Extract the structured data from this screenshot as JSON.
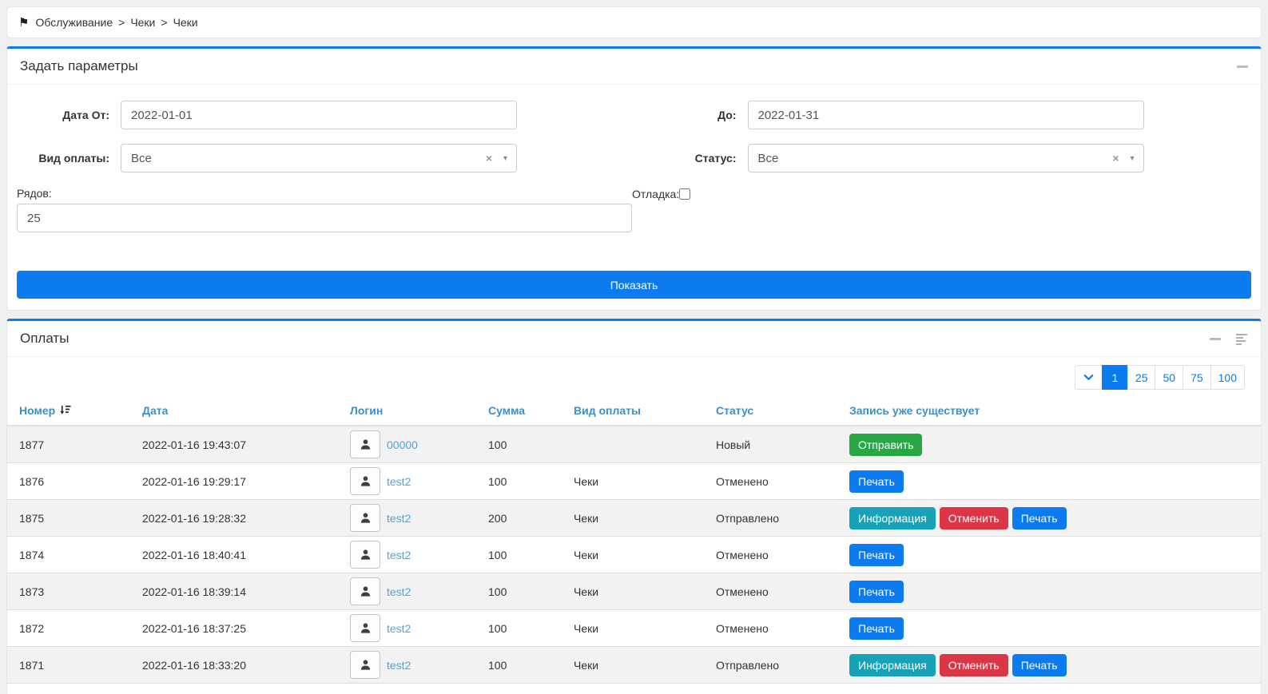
{
  "colors": {
    "accent_blue": "#0d7bf0",
    "table_header_blue": "#3d8fc9",
    "link_blue": "#55a1d6",
    "success_green": "#28a745",
    "info_teal": "#18a2b8",
    "danger_red": "#dc3545",
    "row_stripe_gray": "#f2f2f2"
  },
  "breadcrumb": {
    "icon": "flag-icon",
    "separator": ">",
    "items": [
      "Обслуживание",
      "Чеки",
      "Чеки"
    ]
  },
  "filters_panel": {
    "title": "Задать параметры",
    "date_from": {
      "label": "Дата От:",
      "value": "2022-01-01"
    },
    "date_to": {
      "label": "До:",
      "value": "2022-01-31"
    },
    "payment_type": {
      "label": "Вид оплаты:",
      "value": "Все",
      "clear": "×",
      "caret": "▾"
    },
    "status": {
      "label": "Статус:",
      "value": "Все",
      "clear": "×",
      "caret": "▾"
    },
    "rows": {
      "label": "Рядов:",
      "value": "25"
    },
    "debug": {
      "label": "Отладка:",
      "checked": false
    },
    "submit_label": "Показать"
  },
  "payments_panel": {
    "title": "Оплаты",
    "pagination": {
      "active_page": "1",
      "page_sizes": [
        "25",
        "50",
        "75",
        "100"
      ]
    },
    "table": {
      "columns": [
        "Номер",
        "Дата",
        "Логин",
        "Сумма",
        "Вид оплаты",
        "Статус",
        "Запись уже существует"
      ],
      "sorted_column": "Номер",
      "rows": [
        {
          "number": "1877",
          "date": "2022-01-16 19:43:07",
          "login": "00000",
          "amount": "100",
          "payment_type": "",
          "status": "Новый",
          "actions": [
            {
              "label": "Отправить",
              "style": "success"
            }
          ]
        },
        {
          "number": "1876",
          "date": "2022-01-16 19:29:17",
          "login": "test2",
          "amount": "100",
          "payment_type": "Чеки",
          "status": "Отменено",
          "actions": [
            {
              "label": "Печать",
              "style": "primary"
            }
          ]
        },
        {
          "number": "1875",
          "date": "2022-01-16 19:28:32",
          "login": "test2",
          "amount": "200",
          "payment_type": "Чеки",
          "status": "Отправлено",
          "actions": [
            {
              "label": "Информация",
              "style": "info"
            },
            {
              "label": "Отменить",
              "style": "danger"
            },
            {
              "label": "Печать",
              "style": "primary"
            }
          ]
        },
        {
          "number": "1874",
          "date": "2022-01-16 18:40:41",
          "login": "test2",
          "amount": "100",
          "payment_type": "Чеки",
          "status": "Отменено",
          "actions": [
            {
              "label": "Печать",
              "style": "primary"
            }
          ]
        },
        {
          "number": "1873",
          "date": "2022-01-16 18:39:14",
          "login": "test2",
          "amount": "100",
          "payment_type": "Чеки",
          "status": "Отменено",
          "actions": [
            {
              "label": "Печать",
              "style": "primary"
            }
          ]
        },
        {
          "number": "1872",
          "date": "2022-01-16 18:37:25",
          "login": "test2",
          "amount": "100",
          "payment_type": "Чеки",
          "status": "Отменено",
          "actions": [
            {
              "label": "Печать",
              "style": "primary"
            }
          ]
        },
        {
          "number": "1871",
          "date": "2022-01-16 18:33:20",
          "login": "test2",
          "amount": "100",
          "payment_type": "Чеки",
          "status": "Отправлено",
          "actions": [
            {
              "label": "Информация",
              "style": "info"
            },
            {
              "label": "Отменить",
              "style": "danger"
            },
            {
              "label": "Печать",
              "style": "primary"
            }
          ]
        }
      ]
    }
  }
}
